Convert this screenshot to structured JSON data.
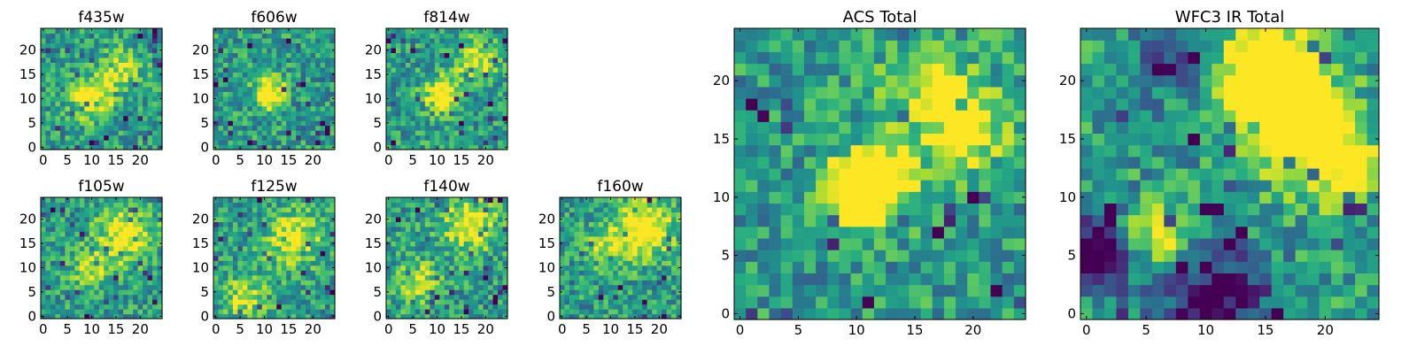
{
  "chart_data": [
    {
      "type": "heatmap",
      "title": "f435w",
      "xticks": [
        0,
        5,
        10,
        15,
        20
      ],
      "yticks": [
        0,
        5,
        10,
        15,
        20
      ],
      "xlim": [
        -0.5,
        24.5
      ],
      "ylim": [
        -0.5,
        24.5
      ],
      "grid_size": 25,
      "colormap": "viridis",
      "features": [
        {
          "x": 10,
          "y": 10,
          "strength": 0.55,
          "radius": 3
        },
        {
          "x": 16,
          "y": 16,
          "strength": 0.35,
          "radius": 3
        }
      ]
    },
    {
      "type": "heatmap",
      "title": "f606w",
      "xticks": [
        0,
        5,
        10,
        15,
        20
      ],
      "yticks": [
        0,
        5,
        10,
        15,
        20
      ],
      "xlim": [
        -0.5,
        24.5
      ],
      "ylim": [
        -0.5,
        24.5
      ],
      "grid_size": 25,
      "colormap": "viridis",
      "features": [
        {
          "x": 11,
          "y": 11,
          "strength": 0.75,
          "radius": 2.2
        }
      ]
    },
    {
      "type": "heatmap",
      "title": "f814w",
      "xticks": [
        0,
        5,
        10,
        15,
        20
      ],
      "yticks": [
        0,
        5,
        10,
        15,
        20
      ],
      "xlim": [
        -0.5,
        24.5
      ],
      "ylim": [
        -0.5,
        24.5
      ],
      "grid_size": 25,
      "colormap": "viridis",
      "features": [
        {
          "x": 11,
          "y": 11,
          "strength": 0.6,
          "radius": 2.5
        },
        {
          "x": 18,
          "y": 18,
          "strength": 0.45,
          "radius": 3
        }
      ]
    },
    {
      "type": "heatmap",
      "title": "f105w",
      "xticks": [
        0,
        5,
        10,
        15,
        20
      ],
      "yticks": [
        0,
        5,
        10,
        15,
        20
      ],
      "xlim": [
        -0.5,
        24.5
      ],
      "ylim": [
        -0.5,
        24.5
      ],
      "grid_size": 25,
      "colormap": "viridis",
      "features": [
        {
          "x": 17,
          "y": 17,
          "strength": 0.5,
          "radius": 4
        },
        {
          "x": 10,
          "y": 10,
          "strength": 0.35,
          "radius": 3
        }
      ]
    },
    {
      "type": "heatmap",
      "title": "f125w",
      "xticks": [
        0,
        5,
        10,
        15,
        20
      ],
      "yticks": [
        0,
        5,
        10,
        15,
        20
      ],
      "xlim": [
        -0.5,
        24.5
      ],
      "ylim": [
        -0.5,
        24.5
      ],
      "grid_size": 25,
      "colormap": "viridis",
      "features": [
        {
          "x": 16,
          "y": 16,
          "strength": 0.45,
          "radius": 4
        },
        {
          "x": 6,
          "y": 4,
          "strength": 0.4,
          "radius": 3
        }
      ]
    },
    {
      "type": "heatmap",
      "title": "f140w",
      "xticks": [
        0,
        5,
        10,
        15,
        20
      ],
      "yticks": [
        0,
        5,
        10,
        15,
        20
      ],
      "xlim": [
        -0.5,
        24.5
      ],
      "ylim": [
        -0.5,
        24.5
      ],
      "grid_size": 25,
      "colormap": "viridis",
      "features": [
        {
          "x": 17,
          "y": 19,
          "strength": 0.5,
          "radius": 4
        },
        {
          "x": 6,
          "y": 7,
          "strength": 0.4,
          "radius": 3
        }
      ]
    },
    {
      "type": "heatmap",
      "title": "f160w",
      "xticks": [
        0,
        5,
        10,
        15,
        20
      ],
      "yticks": [
        0,
        5,
        10,
        15,
        20
      ],
      "xlim": [
        -0.5,
        24.5
      ],
      "ylim": [
        -0.5,
        24.5
      ],
      "grid_size": 25,
      "colormap": "viridis",
      "features": [
        {
          "x": 17,
          "y": 18,
          "strength": 0.65,
          "radius": 4
        },
        {
          "x": 9,
          "y": 14,
          "strength": 0.35,
          "radius": 3
        }
      ]
    },
    {
      "type": "heatmap",
      "title": "ACS Total",
      "xticks": [
        0,
        5,
        10,
        15,
        20
      ],
      "yticks": [
        0,
        5,
        10,
        15,
        20
      ],
      "xlim": [
        -0.5,
        24.5
      ],
      "ylim": [
        -0.5,
        24.5
      ],
      "grid_size": 25,
      "colormap": "viridis",
      "features": [
        {
          "x": 10,
          "y": 10,
          "strength": 0.8,
          "radius": 2
        },
        {
          "x": 12,
          "y": 12,
          "strength": 0.7,
          "radius": 2
        },
        {
          "x": 19,
          "y": 16,
          "strength": 0.6,
          "radius": 2.5
        },
        {
          "x": 16,
          "y": 20,
          "strength": 0.35,
          "radius": 2.5
        }
      ]
    },
    {
      "type": "heatmap",
      "title": "WFC3 IR Total",
      "xticks": [
        0,
        5,
        10,
        15,
        20
      ],
      "yticks": [
        0,
        5,
        10,
        15,
        20
      ],
      "xlim": [
        -0.5,
        24.5
      ],
      "ylim": [
        -0.5,
        24.5
      ],
      "grid_size": 25,
      "colormap": "viridis",
      "features": [
        {
          "x": 15,
          "y": 21,
          "strength": 0.85,
          "radius": 2.5
        },
        {
          "x": 17,
          "y": 18,
          "strength": 0.85,
          "radius": 2.5
        },
        {
          "x": 20,
          "y": 14,
          "strength": 0.65,
          "radius": 3
        },
        {
          "x": 6,
          "y": 7,
          "strength": 0.6,
          "radius": 1.5
        }
      ],
      "dark_regions": [
        {
          "x": 1,
          "y": 5,
          "strength": 0.8,
          "radius": 2
        },
        {
          "x": 11,
          "y": 1,
          "strength": 0.6,
          "radius": 3
        },
        {
          "x": 7,
          "y": 22,
          "strength": 0.4,
          "radius": 2
        }
      ]
    }
  ]
}
